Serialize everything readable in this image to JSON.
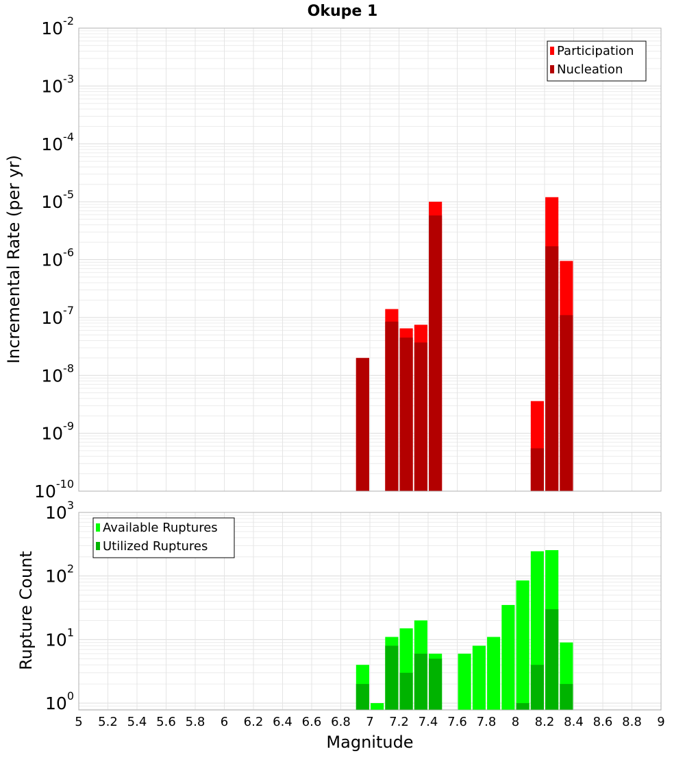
{
  "title": "Okupe 1",
  "x_axis": {
    "label": "Magnitude",
    "ticks": [
      "5",
      "5.2",
      "5.4",
      "5.6",
      "5.8",
      "6",
      "6.2",
      "6.4",
      "6.6",
      "6.8",
      "7",
      "7.2",
      "7.4",
      "7.6",
      "7.8",
      "8",
      "8.2",
      "8.4",
      "8.6",
      "8.8",
      "9"
    ]
  },
  "chart_data": [
    {
      "type": "bar",
      "ylabel": "Incremental Rate (per yr)",
      "xlim": [
        5,
        9
      ],
      "ylim": [
        1e-10,
        0.01
      ],
      "yscale": "log",
      "yticks": [
        {
          "base": "10",
          "exp": "-10",
          "value": 1e-10
        },
        {
          "base": "10",
          "exp": "-9",
          "value": 1e-09
        },
        {
          "base": "10",
          "exp": "-8",
          "value": 1e-08
        },
        {
          "base": "10",
          "exp": "-7",
          "value": 1e-07
        },
        {
          "base": "10",
          "exp": "-6",
          "value": 1e-06
        },
        {
          "base": "10",
          "exp": "-5",
          "value": 1e-05
        },
        {
          "base": "10",
          "exp": "-4",
          "value": 0.0001
        },
        {
          "base": "10",
          "exp": "-3",
          "value": 0.001
        },
        {
          "base": "10",
          "exp": "-2",
          "value": 0.01
        }
      ],
      "bar_width": 0.09,
      "grid": true,
      "legend_position": "top-right",
      "series": [
        {
          "name": "Participation",
          "color": "#ff0000",
          "points": [
            {
              "x": 6.95,
              "y": 2e-08
            },
            {
              "x": 7.15,
              "y": 1.4e-07
            },
            {
              "x": 7.25,
              "y": 6.5e-08
            },
            {
              "x": 7.35,
              "y": 7.5e-08
            },
            {
              "x": 7.45,
              "y": 1e-05
            },
            {
              "x": 8.15,
              "y": 3.6e-09
            },
            {
              "x": 8.25,
              "y": 1.2e-05
            },
            {
              "x": 8.35,
              "y": 9.5e-07
            }
          ]
        },
        {
          "name": "Nucleation",
          "color": "#b30000",
          "points": [
            {
              "x": 6.95,
              "y": 2e-08
            },
            {
              "x": 7.15,
              "y": 8.5e-08
            },
            {
              "x": 7.25,
              "y": 4.5e-08
            },
            {
              "x": 7.35,
              "y": 3.7e-08
            },
            {
              "x": 7.45,
              "y": 5.8e-06
            },
            {
              "x": 8.15,
              "y": 5.5e-10
            },
            {
              "x": 8.25,
              "y": 1.7e-06
            },
            {
              "x": 8.35,
              "y": 1.1e-07
            }
          ]
        }
      ]
    },
    {
      "type": "bar",
      "ylabel": "Rupture Count",
      "xlim": [
        5,
        9
      ],
      "ylim": [
        0.78,
        1000
      ],
      "yscale": "log",
      "yticks": [
        {
          "base": "10",
          "exp": "0",
          "value": 1
        },
        {
          "base": "10",
          "exp": "1",
          "value": 10
        },
        {
          "base": "10",
          "exp": "2",
          "value": 100
        },
        {
          "base": "10",
          "exp": "3",
          "value": 1000
        }
      ],
      "bar_width": 0.09,
      "grid": true,
      "legend_position": "top-left",
      "series": [
        {
          "name": "Available Ruptures",
          "color": "#00ff00",
          "points": [
            {
              "x": 6.95,
              "y": 4
            },
            {
              "x": 7.05,
              "y": 1
            },
            {
              "x": 7.15,
              "y": 11
            },
            {
              "x": 7.25,
              "y": 15
            },
            {
              "x": 7.35,
              "y": 20
            },
            {
              "x": 7.45,
              "y": 6
            },
            {
              "x": 7.65,
              "y": 6
            },
            {
              "x": 7.75,
              "y": 8
            },
            {
              "x": 7.85,
              "y": 11
            },
            {
              "x": 7.95,
              "y": 35
            },
            {
              "x": 8.05,
              "y": 85
            },
            {
              "x": 8.15,
              "y": 245
            },
            {
              "x": 8.25,
              "y": 255
            },
            {
              "x": 8.35,
              "y": 9
            }
          ]
        },
        {
          "name": "Utilized Ruptures",
          "color": "#00b300",
          "points": [
            {
              "x": 6.95,
              "y": 2
            },
            {
              "x": 7.15,
              "y": 8
            },
            {
              "x": 7.25,
              "y": 3
            },
            {
              "x": 7.35,
              "y": 6
            },
            {
              "x": 7.45,
              "y": 5
            },
            {
              "x": 8.05,
              "y": 1
            },
            {
              "x": 8.15,
              "y": 4
            },
            {
              "x": 8.25,
              "y": 30
            },
            {
              "x": 8.35,
              "y": 2
            }
          ]
        }
      ]
    }
  ]
}
